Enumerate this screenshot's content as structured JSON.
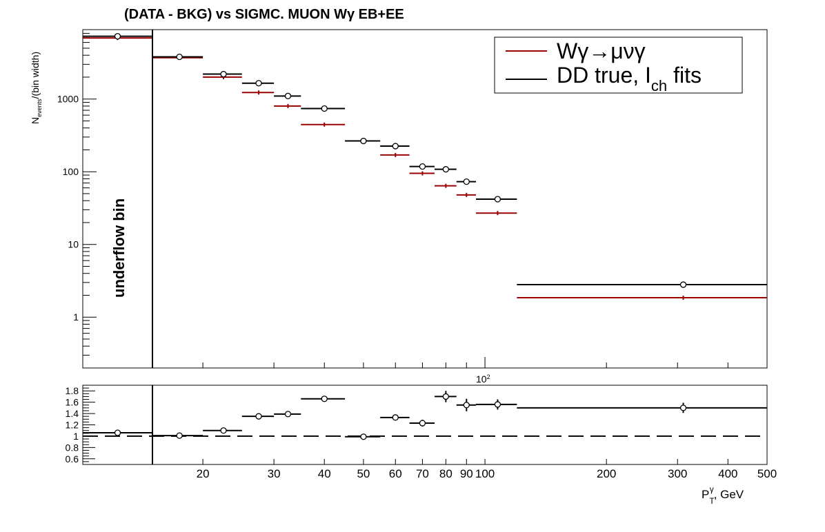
{
  "colors": {
    "signal": "#990000",
    "data": "#000000"
  },
  "chart_data": [
    {
      "type": "scatter",
      "panel": "main",
      "title": "(DATA - BKG) vs SIGMC. MUON Wγ  EB+EE",
      "ylabel_main": "N",
      "ylabel_sub": "events",
      "ylabel_tail": "/(bin width)",
      "y_scale": "log",
      "ylim": [
        0.2,
        9000
      ],
      "x_scale": "log",
      "xlim": [
        10,
        500
      ],
      "yticks": [
        1,
        10,
        100,
        1000
      ],
      "ytick_labels": [
        "1",
        "10",
        "100",
        "1000"
      ],
      "x_exponent_label": "10",
      "x_exponent_power": "2",
      "annotation": "underflow bin",
      "legend_position": "top-right",
      "legend": [
        {
          "name": "Wγ→μνγ",
          "color": "#990000"
        },
        {
          "name_main": "DD true, I",
          "name_sub": "ch",
          "name_tail": " fits",
          "color": "#000000"
        }
      ],
      "series": [
        {
          "name": "Wγ→μνγ",
          "color": "#990000",
          "points": [
            {
              "x_low": 10,
              "x_high": 15,
              "x": 12.5,
              "y": 6900
            },
            {
              "x_low": 15,
              "x_high": 20,
              "x": 17.5,
              "y": 3700
            },
            {
              "x_low": 20,
              "x_high": 25,
              "x": 22.5,
              "y": 2000
            },
            {
              "x_low": 25,
              "x_high": 30,
              "x": 27.5,
              "y": 1230
            },
            {
              "x_low": 30,
              "x_high": 35,
              "x": 32.5,
              "y": 800
            },
            {
              "x_low": 35,
              "x_high": 45,
              "x": 40,
              "y": 445
            },
            {
              "x_low": 45,
              "x_high": 55,
              "x": 50,
              "y": 265
            },
            {
              "x_low": 55,
              "x_high": 65,
              "x": 60,
              "y": 170
            },
            {
              "x_low": 65,
              "x_high": 75,
              "x": 70,
              "y": 95
            },
            {
              "x_low": 75,
              "x_high": 85,
              "x": 80,
              "y": 64
            },
            {
              "x_low": 85,
              "x_high": 95,
              "x": 90,
              "y": 48
            },
            {
              "x_low": 95,
              "x_high": 120,
              "x": 107.5,
              "y": 27
            },
            {
              "x_low": 120,
              "x_high": 500,
              "x": 310,
              "y": 1.85
            }
          ]
        },
        {
          "name": "DD true, Ich fits",
          "color": "#000000",
          "points": [
            {
              "x_low": 10,
              "x_high": 15,
              "x": 12.5,
              "y": 7300
            },
            {
              "x_low": 15,
              "x_high": 20,
              "x": 17.5,
              "y": 3800
            },
            {
              "x_low": 20,
              "x_high": 25,
              "x": 22.5,
              "y": 2200
            },
            {
              "x_low": 25,
              "x_high": 30,
              "x": 27.5,
              "y": 1650
            },
            {
              "x_low": 30,
              "x_high": 35,
              "x": 32.5,
              "y": 1100
            },
            {
              "x_low": 35,
              "x_high": 45,
              "x": 40,
              "y": 740
            },
            {
              "x_low": 45,
              "x_high": 55,
              "x": 50,
              "y": 265
            },
            {
              "x_low": 55,
              "x_high": 65,
              "x": 60,
              "y": 225
            },
            {
              "x_low": 65,
              "x_high": 75,
              "x": 70,
              "y": 118
            },
            {
              "x_low": 75,
              "x_high": 85,
              "x": 80,
              "y": 108
            },
            {
              "x_low": 85,
              "x_high": 95,
              "x": 90,
              "y": 73
            },
            {
              "x_low": 95,
              "x_high": 120,
              "x": 107.5,
              "y": 42
            },
            {
              "x_low": 120,
              "x_high": 500,
              "x": 310,
              "y": 2.8
            }
          ]
        }
      ]
    },
    {
      "type": "scatter",
      "panel": "ratio",
      "ylim": [
        0.5,
        1.9
      ],
      "y_scale": "linear",
      "x_scale": "log",
      "xlim": [
        10,
        500
      ],
      "yticks": [
        0.6,
        0.8,
        1,
        1.2,
        1.4,
        1.6,
        1.8
      ],
      "ytick_labels": [
        "0.6",
        "0.8",
        "1",
        "1.2",
        "1.4",
        "1.6",
        "1.8"
      ],
      "reference_line": 1,
      "xticks": [
        20,
        30,
        40,
        50,
        60,
        70,
        80,
        90,
        100,
        200,
        300,
        400,
        500
      ],
      "xtick_labels": [
        "20",
        "30",
        "40",
        "50",
        "60",
        "70",
        "80",
        "90",
        "100",
        "200",
        "300",
        "400",
        "500"
      ],
      "xlabel_main": "P",
      "xlabel_sub": "T",
      "xlabel_sup": "γ",
      "xlabel_tail": ", GeV",
      "series": [
        {
          "name": "ratio",
          "points": [
            {
              "x_low": 10,
              "x_high": 15,
              "x": 12.5,
              "y": 1.06,
              "err": 0.0
            },
            {
              "x_low": 15,
              "x_high": 20,
              "x": 17.5,
              "y": 1.01,
              "err": 0.02
            },
            {
              "x_low": 20,
              "x_high": 25,
              "x": 22.5,
              "y": 1.1,
              "err": 0.02
            },
            {
              "x_low": 25,
              "x_high": 30,
              "x": 27.5,
              "y": 1.35,
              "err": 0.02
            },
            {
              "x_low": 30,
              "x_high": 35,
              "x": 32.5,
              "y": 1.39,
              "err": 0.03
            },
            {
              "x_low": 35,
              "x_high": 45,
              "x": 40,
              "y": 1.66,
              "err": 0.02
            },
            {
              "x_low": 45,
              "x_high": 55,
              "x": 50,
              "y": 0.99,
              "err": 0.02
            },
            {
              "x_low": 55,
              "x_high": 65,
              "x": 60,
              "y": 1.33,
              "err": 0.05
            },
            {
              "x_low": 65,
              "x_high": 75,
              "x": 70,
              "y": 1.23,
              "err": 0.06
            },
            {
              "x_low": 75,
              "x_high": 85,
              "x": 80,
              "y": 1.7,
              "err": 0.1
            },
            {
              "x_low": 85,
              "x_high": 95,
              "x": 90,
              "y": 1.55,
              "err": 0.11
            },
            {
              "x_low": 95,
              "x_high": 120,
              "x": 107.5,
              "y": 1.56,
              "err": 0.09
            },
            {
              "x_low": 120,
              "x_high": 500,
              "x": 310,
              "y": 1.5,
              "err": 0.09
            }
          ]
        }
      ]
    }
  ]
}
